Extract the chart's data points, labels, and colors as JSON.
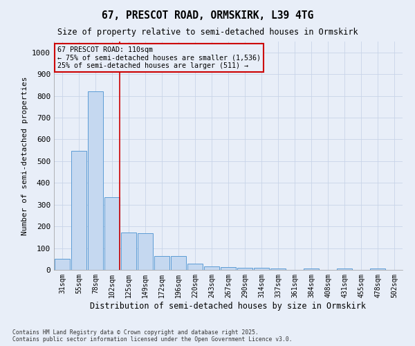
{
  "title_line1": "67, PRESCOT ROAD, ORMSKIRK, L39 4TG",
  "title_line2": "Size of property relative to semi-detached houses in Ormskirk",
  "xlabel": "Distribution of semi-detached houses by size in Ormskirk",
  "ylabel": "Number of semi-detached properties",
  "categories": [
    "31sqm",
    "55sqm",
    "78sqm",
    "102sqm",
    "125sqm",
    "149sqm",
    "172sqm",
    "196sqm",
    "220sqm",
    "243sqm",
    "267sqm",
    "290sqm",
    "314sqm",
    "337sqm",
    "361sqm",
    "384sqm",
    "408sqm",
    "431sqm",
    "455sqm",
    "478sqm",
    "502sqm"
  ],
  "values": [
    50,
    548,
    820,
    335,
    172,
    170,
    65,
    65,
    30,
    15,
    13,
    10,
    10,
    5,
    0,
    5,
    0,
    5,
    0,
    5,
    0
  ],
  "bar_color": "#c5d8f0",
  "bar_edge_color": "#5b9bd5",
  "grid_color": "#c8d4e8",
  "annotation_box_color": "#cc0000",
  "vline_color": "#cc0000",
  "vline_x_index": 3,
  "annotation_text_line1": "67 PRESCOT ROAD: 110sqm",
  "annotation_text_line2": "← 75% of semi-detached houses are smaller (1,536)",
  "annotation_text_line3": "25% of semi-detached houses are larger (511) →",
  "ylim": [
    0,
    1050
  ],
  "yticks": [
    0,
    100,
    200,
    300,
    400,
    500,
    600,
    700,
    800,
    900,
    1000
  ],
  "footnote1": "Contains HM Land Registry data © Crown copyright and database right 2025.",
  "footnote2": "Contains public sector information licensed under the Open Government Licence v3.0.",
  "bg_color": "#e8eef8",
  "plot_bg_color": "#e8eef8"
}
